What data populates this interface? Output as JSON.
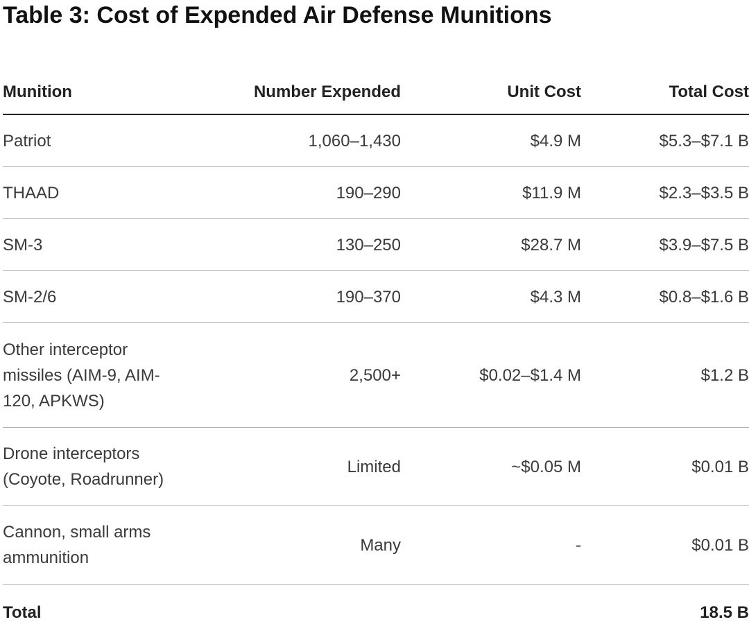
{
  "title": "Table 3: Cost of Expended Air Defense Munitions",
  "table": {
    "headers": [
      "Munition",
      "Number Expended",
      "Unit Cost",
      "Total Cost"
    ],
    "rows": [
      [
        "Patriot",
        "1,060–1,430",
        "$4.9 M",
        "$5.3–$7.1 B"
      ],
      [
        "THAAD",
        "190–290",
        "$11.9 M",
        "$2.3–$3.5 B"
      ],
      [
        "SM-3",
        "130–250",
        "$28.7 M",
        "$3.9–$7.5 B"
      ],
      [
        "SM-2/6",
        "190–370",
        "$4.3 M",
        "$0.8–$1.6 B"
      ],
      [
        "Other interceptor missiles (AIM-9, AIM-120, APKWS)",
        "2,500+",
        "$0.02–$1.4 M",
        "$1.2 B"
      ],
      [
        "Drone interceptors (Coyote, Roadrunner)",
        "Limited",
        "~$0.05 M",
        "$0.01 B"
      ],
      [
        "Cannon, small arms ammunition",
        "Many",
        "-",
        "$0.01 B"
      ]
    ],
    "total": {
      "label": "Total",
      "value": "18.5 B"
    }
  }
}
